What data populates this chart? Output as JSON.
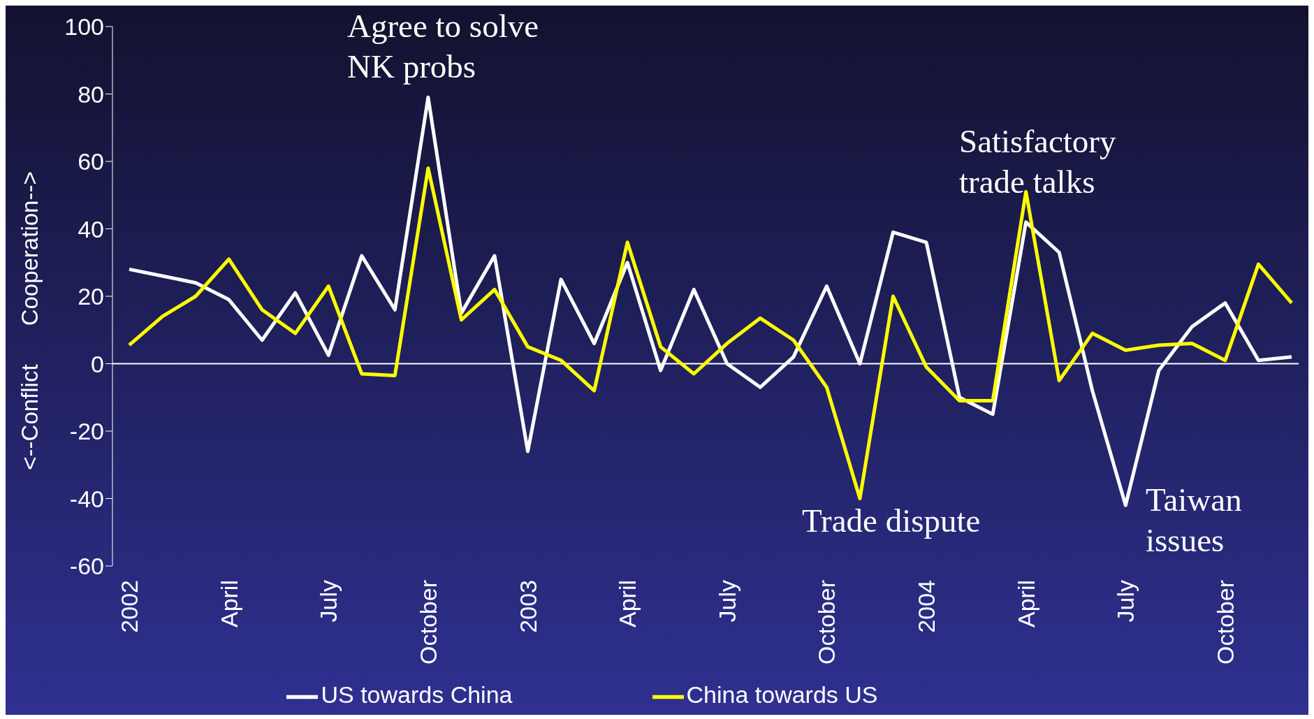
{
  "chart_data": {
    "type": "line",
    "ylabel": "<--Conflict      Cooperation-->",
    "categories": [
      "2002",
      null,
      null,
      "April",
      null,
      null,
      "July",
      null,
      null,
      "October",
      null,
      null,
      "2003",
      null,
      null,
      "April",
      null,
      null,
      "July",
      null,
      null,
      "October",
      null,
      null,
      "2004",
      null,
      null,
      "April",
      null,
      null,
      "July",
      null,
      null,
      "October",
      null,
      null
    ],
    "series": [
      {
        "name": "US towards China",
        "color": "#ffffff",
        "values": [
          28,
          26,
          24,
          19,
          7,
          21,
          2.5,
          32,
          16,
          79,
          15,
          32,
          -26,
          25,
          6,
          30,
          -2,
          22,
          0,
          -7,
          2,
          23,
          0,
          39,
          36,
          -10,
          -15,
          42,
          33,
          -8,
          -42,
          -2,
          11,
          18,
          1,
          2
        ]
      },
      {
        "name": "China towards US",
        "color": "#ffff00",
        "values": [
          5.5,
          14,
          20,
          31,
          16,
          9,
          23,
          -3,
          -3.5,
          58,
          13,
          22,
          5,
          1,
          -8,
          36,
          5,
          -3,
          6,
          13.5,
          7,
          -7,
          -40,
          20,
          -1,
          -11,
          -11,
          51,
          -5,
          9,
          4,
          5.5,
          6,
          1,
          29.5,
          18
        ]
      }
    ],
    "ylim": [
      -60,
      100
    ],
    "yticks": [
      -60,
      -40,
      -20,
      0,
      20,
      40,
      60,
      80,
      100
    ],
    "ref_lines": [
      {
        "axis": "y",
        "value": 0,
        "color": "#ffffff"
      }
    ],
    "annotations": [
      "Agree to solve\nNK probs",
      "Satisfactory\ntrade talks",
      "Trade dispute",
      "Taiwan\nissues"
    ],
    "legend": "bottom",
    "marker": "none",
    "line_style": "solid"
  }
}
